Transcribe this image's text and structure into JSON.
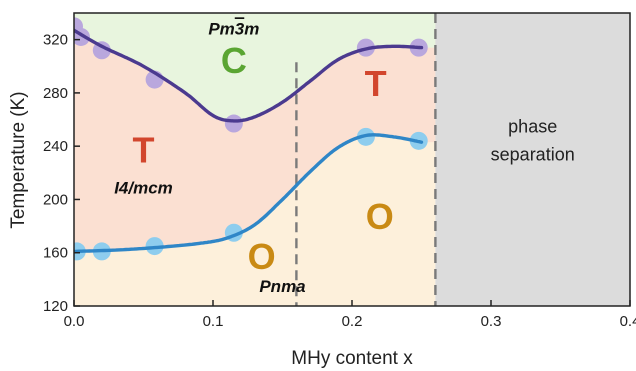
{
  "chart_data": {
    "type": "line",
    "xlabel": "MHy content x",
    "ylabel": "Temperature (K)",
    "xlim": [
      0.0,
      0.4
    ],
    "ylim": [
      120,
      340
    ],
    "xticks": [
      "0.0",
      "0.1",
      "0.2",
      "0.3",
      "0.4"
    ],
    "yticks": [
      "120",
      "160",
      "200",
      "240",
      "280",
      "320"
    ],
    "grid": false,
    "regions": [
      {
        "name": "cubic",
        "color": "#e8f5de"
      },
      {
        "name": "tetragonal",
        "color": "#fbe0d2"
      },
      {
        "name": "orthorhombic",
        "color": "#fdf0db"
      },
      {
        "name": "phase-separation",
        "color": "#dcdcdc",
        "x_start": 0.26,
        "x_end": 0.4
      }
    ],
    "boundaries": [
      0.16,
      0.26
    ],
    "series": [
      {
        "role": "upper-transition",
        "line_color": "#4b3a8f",
        "marker_color": "#b9a7dd",
        "points": [
          [
            0.0,
            330
          ],
          [
            0.005,
            322
          ],
          [
            0.02,
            312
          ],
          [
            0.058,
            290
          ],
          [
            0.115,
            257
          ],
          [
            0.21,
            314
          ],
          [
            0.248,
            314
          ]
        ],
        "curve": [
          [
            0.0,
            327
          ],
          [
            0.02,
            315
          ],
          [
            0.05,
            300
          ],
          [
            0.08,
            280
          ],
          [
            0.1,
            263
          ],
          [
            0.115,
            259
          ],
          [
            0.13,
            262
          ],
          [
            0.15,
            273
          ],
          [
            0.17,
            289
          ],
          [
            0.19,
            305
          ],
          [
            0.21,
            313
          ],
          [
            0.23,
            315
          ],
          [
            0.25,
            314
          ]
        ]
      },
      {
        "role": "lower-transition",
        "line_color": "#2f86c7",
        "marker_color": "#8ecdee",
        "points": [
          [
            0.002,
            161
          ],
          [
            0.02,
            161
          ],
          [
            0.058,
            165
          ],
          [
            0.115,
            175
          ],
          [
            0.21,
            247
          ],
          [
            0.248,
            244
          ]
        ],
        "curve": [
          [
            0.0,
            161
          ],
          [
            0.03,
            162
          ],
          [
            0.06,
            164
          ],
          [
            0.09,
            167
          ],
          [
            0.11,
            171
          ],
          [
            0.13,
            181
          ],
          [
            0.15,
            200
          ],
          [
            0.17,
            221
          ],
          [
            0.19,
            239
          ],
          [
            0.21,
            248
          ],
          [
            0.23,
            247
          ],
          [
            0.25,
            243
          ]
        ]
      }
    ],
    "phase_labels": [
      {
        "text": "C",
        "x": 0.115,
        "y": 302,
        "color": "#5aa532"
      },
      {
        "text": "T",
        "x": 0.217,
        "y": 285,
        "color": "#d2462d"
      },
      {
        "text": "T",
        "x": 0.05,
        "y": 235,
        "color": "#d2462d"
      },
      {
        "text": "O",
        "x": 0.22,
        "y": 185,
        "color": "#c98a14"
      },
      {
        "text": "O",
        "x": 0.135,
        "y": 155,
        "color": "#c98a14"
      }
    ],
    "space_group_labels": [
      {
        "text": "I4/mcm",
        "x": 0.05,
        "y": 208
      },
      {
        "text": "Pnma",
        "x": 0.15,
        "y": 134
      }
    ],
    "cubic_label": {
      "base": "Pm",
      "bar": "3",
      "tail": "m",
      "x": 0.115,
      "y": 327
    },
    "region_text": [
      {
        "text": "phase",
        "x": 0.33,
        "y": 254
      },
      {
        "text": "separation",
        "x": 0.33,
        "y": 233
      }
    ]
  }
}
